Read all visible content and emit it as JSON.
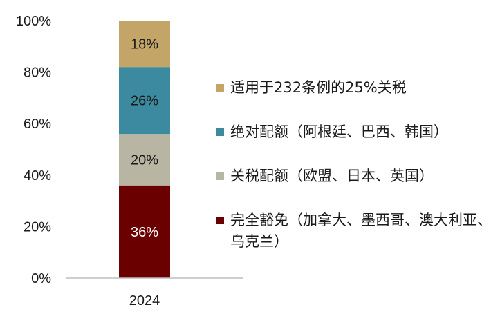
{
  "chart_data": {
    "type": "bar",
    "stacked": true,
    "categories": [
      "2024"
    ],
    "ylim": [
      0,
      100
    ],
    "yticks": [
      "0%",
      "20%",
      "40%",
      "60%",
      "80%",
      "100%"
    ],
    "series": [
      {
        "name": "完全豁免（加拿大、墨西哥、澳大利亚、乌克兰）",
        "values": [
          36
        ],
        "label": "36%",
        "color": "#6b0000",
        "label_color": "#ffffff"
      },
      {
        "name": "关税配额（欧盟、日本、英国）",
        "values": [
          20
        ],
        "label": "20%",
        "color": "#b8b6a3",
        "label_color": "#1a1a1a"
      },
      {
        "name": "绝对配额（阿根廷、巴西、韩国）",
        "values": [
          26
        ],
        "label": "26%",
        "color": "#3c8aa0",
        "label_color": "#1a1a1a"
      },
      {
        "name": "适用于232条例的25%关税",
        "values": [
          18
        ],
        "label": "18%",
        "color": "#c4a568",
        "label_color": "#1a1a1a"
      }
    ],
    "legend": {
      "placement": "right",
      "order": [
        3,
        2,
        1,
        0
      ]
    }
  }
}
